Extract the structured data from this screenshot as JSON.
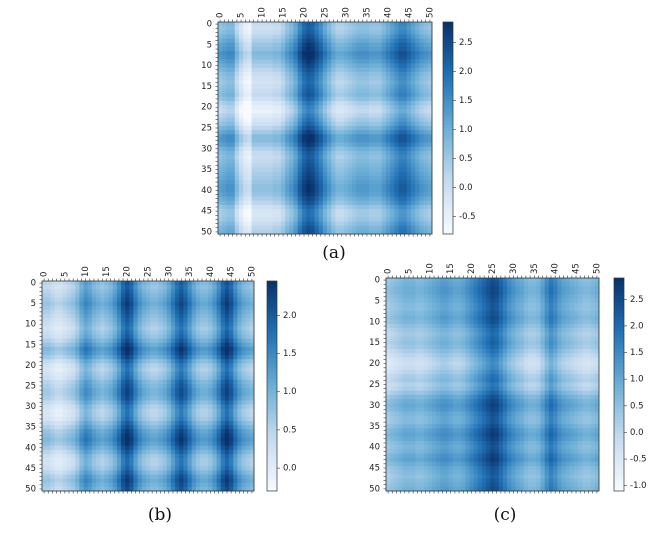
{
  "chart_data": [
    {
      "type": "heatmap",
      "caption": "(a)",
      "xticks": [
        "0",
        "5",
        "10",
        "15",
        "20",
        "25",
        "30",
        "35",
        "40",
        "45",
        "50"
      ],
      "yticks": [
        "0",
        "5",
        "10",
        "15",
        "20",
        "25",
        "30",
        "35",
        "40",
        "45",
        "50"
      ],
      "grid_size": 51,
      "colorbar": {
        "min": -0.8,
        "max": 2.85,
        "ticks": [
          "2.5",
          "2.0",
          "1.5",
          "1.0",
          "0.5",
          "0.0",
          "-0.5"
        ],
        "tick_values": [
          2.5,
          2.0,
          1.5,
          1.0,
          0.5,
          0.0,
          -0.5
        ]
      },
      "cmap": [
        "#f7fbff",
        "#c6dbef",
        "#6baed6",
        "#2171b5",
        "#08306b"
      ],
      "col_profile": [
        0.8,
        0.9,
        1.0,
        1.0,
        0.4,
        0.0,
        -0.3,
        -0.4,
        0.2,
        0.2,
        0.2,
        0.2,
        0.2,
        0.3,
        0.3,
        0.5,
        0.8,
        1.0,
        1.3,
        1.8,
        2.2,
        2.4,
        2.3,
        2.0,
        1.7,
        1.3,
        1.0,
        0.7,
        0.5,
        0.5,
        0.6,
        0.7,
        0.8,
        0.9,
        0.9,
        0.9,
        0.8,
        0.8,
        0.8,
        1.0,
        1.2,
        1.4,
        1.6,
        1.8,
        1.8,
        1.6,
        1.4,
        1.2,
        1.0,
        0.9,
        0.8
      ],
      "row_profile": [
        0.7,
        0.6,
        0.7,
        0.9,
        1.1,
        1.3,
        1.4,
        1.6,
        1.5,
        1.3,
        1.1,
        0.9,
        0.7,
        0.6,
        0.5,
        0.6,
        0.7,
        0.8,
        0.6,
        0.3,
        0.1,
        0.0,
        0.2,
        0.4,
        0.6,
        0.9,
        1.2,
        1.5,
        1.5,
        1.3,
        1.0,
        0.8,
        0.7,
        0.8,
        0.9,
        1.0,
        1.1,
        1.2,
        1.3,
        1.4,
        1.4,
        1.3,
        1.1,
        0.9,
        0.6,
        0.4,
        0.4,
        0.5,
        0.7,
        0.9,
        1.0
      ]
    },
    {
      "type": "heatmap",
      "caption": "(b)",
      "xticks": [
        "0",
        "5",
        "10",
        "15",
        "20",
        "25",
        "30",
        "35",
        "40",
        "45",
        "50"
      ],
      "yticks": [
        "0",
        "5",
        "10",
        "15",
        "20",
        "25",
        "30",
        "35",
        "40",
        "45",
        "50"
      ],
      "grid_size": 51,
      "colorbar": {
        "min": -0.3,
        "max": 2.45,
        "ticks": [
          "2.0",
          "1.5",
          "1.0",
          "0.5",
          "0.0"
        ],
        "tick_values": [
          2.0,
          1.5,
          1.0,
          0.5,
          0.0
        ]
      },
      "cmap": [
        "#f7fbff",
        "#c6dbef",
        "#6baed6",
        "#2171b5",
        "#08306b"
      ],
      "col_profile": [
        0.5,
        0.5,
        0.4,
        0.3,
        0.3,
        0.4,
        0.5,
        0.6,
        0.8,
        1.1,
        1.3,
        1.2,
        1.0,
        0.9,
        0.8,
        0.9,
        1.0,
        1.2,
        1.5,
        1.9,
        2.1,
        1.9,
        1.5,
        1.2,
        1.0,
        0.9,
        0.8,
        0.8,
        0.9,
        1.0,
        1.2,
        1.5,
        1.8,
        2.0,
        1.8,
        1.5,
        1.2,
        1.0,
        0.9,
        0.9,
        1.0,
        1.2,
        1.5,
        1.9,
        2.1,
        1.9,
        1.5,
        1.2,
        1.0,
        0.9,
        0.8
      ],
      "row_profile": [
        0.8,
        0.7,
        0.8,
        0.9,
        1.0,
        1.1,
        1.0,
        0.9,
        0.8,
        0.7,
        0.6,
        0.5,
        0.6,
        0.7,
        0.9,
        1.1,
        1.3,
        1.2,
        1.0,
        0.7,
        0.5,
        0.4,
        0.5,
        0.6,
        0.8,
        0.9,
        1.0,
        1.0,
        0.9,
        0.7,
        0.5,
        0.4,
        0.4,
        0.5,
        0.7,
        0.9,
        1.1,
        1.2,
        1.3,
        1.2,
        1.0,
        0.8,
        0.6,
        0.5,
        0.5,
        0.6,
        0.8,
        1.0,
        1.1,
        1.0,
        0.9
      ]
    },
    {
      "type": "heatmap",
      "caption": "(c)",
      "xticks": [
        "0",
        "5",
        "10",
        "15",
        "20",
        "25",
        "30",
        "35",
        "40",
        "45",
        "50"
      ],
      "yticks": [
        "0",
        "5",
        "10",
        "15",
        "20",
        "25",
        "30",
        "35",
        "40",
        "45",
        "50"
      ],
      "grid_size": 51,
      "colorbar": {
        "min": -1.1,
        "max": 2.9,
        "ticks": [
          "2.5",
          "2.0",
          "1.5",
          "1.0",
          "0.5",
          "0.0",
          "-0.5",
          "-1.0"
        ],
        "tick_values": [
          2.5,
          2.0,
          1.5,
          1.0,
          0.5,
          0.0,
          -0.5,
          -1.0
        ]
      },
      "cmap": [
        "#f7fbff",
        "#c6dbef",
        "#6baed6",
        "#2171b5",
        "#08306b"
      ],
      "col_profile": [
        0.2,
        0.3,
        0.4,
        0.5,
        0.6,
        0.6,
        0.6,
        0.5,
        0.5,
        0.6,
        0.7,
        0.8,
        0.9,
        1.0,
        1.0,
        0.9,
        0.8,
        0.8,
        0.9,
        1.1,
        1.3,
        1.5,
        1.7,
        1.9,
        2.1,
        2.3,
        2.2,
        1.9,
        1.6,
        1.3,
        1.1,
        0.9,
        0.8,
        0.6,
        0.5,
        0.5,
        0.6,
        0.9,
        1.3,
        1.6,
        1.4,
        1.1,
        0.9,
        0.8,
        0.7,
        0.6,
        0.5,
        0.4,
        0.4,
        0.5,
        0.6
      ],
      "row_profile": [
        0.9,
        1.0,
        1.1,
        1.1,
        1.0,
        0.9,
        0.8,
        0.8,
        0.9,
        1.0,
        0.9,
        0.7,
        0.5,
        0.4,
        0.5,
        0.6,
        0.5,
        0.3,
        0.1,
        -0.1,
        -0.2,
        -0.1,
        0.1,
        0.3,
        0.4,
        0.2,
        0.3,
        0.6,
        0.9,
        1.1,
        1.2,
        1.1,
        0.9,
        0.8,
        0.8,
        1.0,
        1.2,
        1.3,
        1.2,
        1.0,
        0.9,
        1.0,
        1.2,
        1.3,
        1.1,
        0.9,
        0.8,
        0.7,
        0.8,
        0.9,
        1.0
      ]
    }
  ]
}
